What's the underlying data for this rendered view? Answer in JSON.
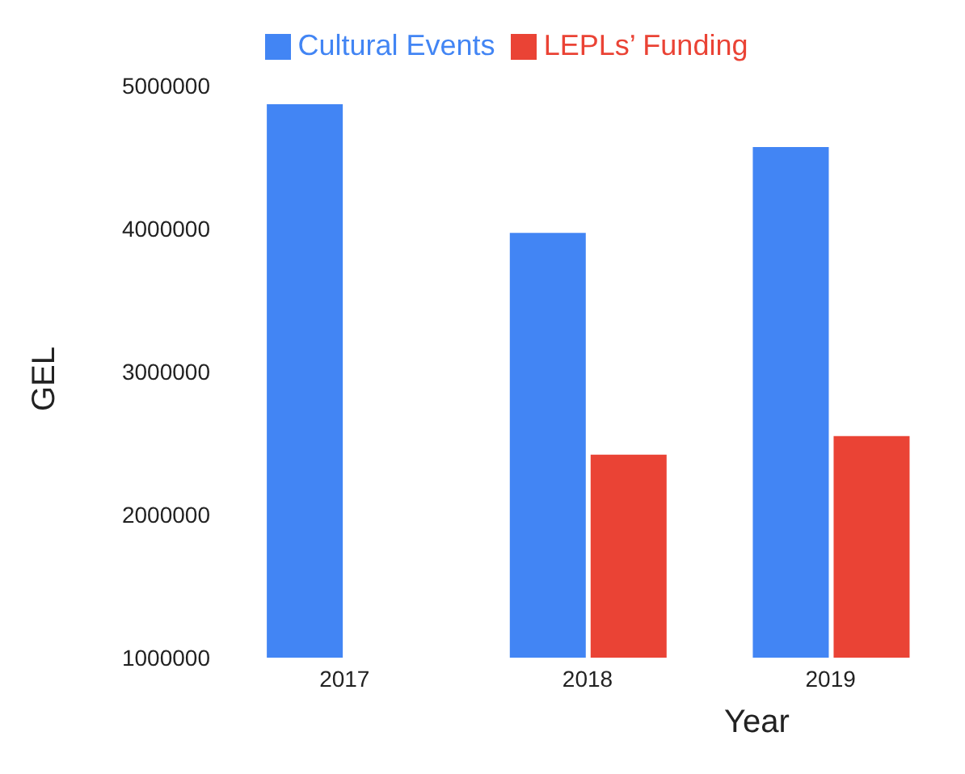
{
  "chart_data": {
    "type": "bar",
    "xlabel": "Year",
    "ylabel": "GEL",
    "categories": [
      "2017",
      "2018",
      "2019"
    ],
    "series": [
      {
        "name": "Cultural Events",
        "color": "#4285f4",
        "values": [
          4870000,
          3970000,
          4570000
        ]
      },
      {
        "name": "LEPLs’ Funding",
        "color": "#ea4335",
        "values": [
          null,
          2420000,
          2550000
        ]
      }
    ],
    "ylim": [
      1000000,
      5000000
    ],
    "yticks": [
      1000000,
      2000000,
      3000000,
      4000000,
      5000000
    ],
    "grid": false,
    "legend": "top"
  }
}
